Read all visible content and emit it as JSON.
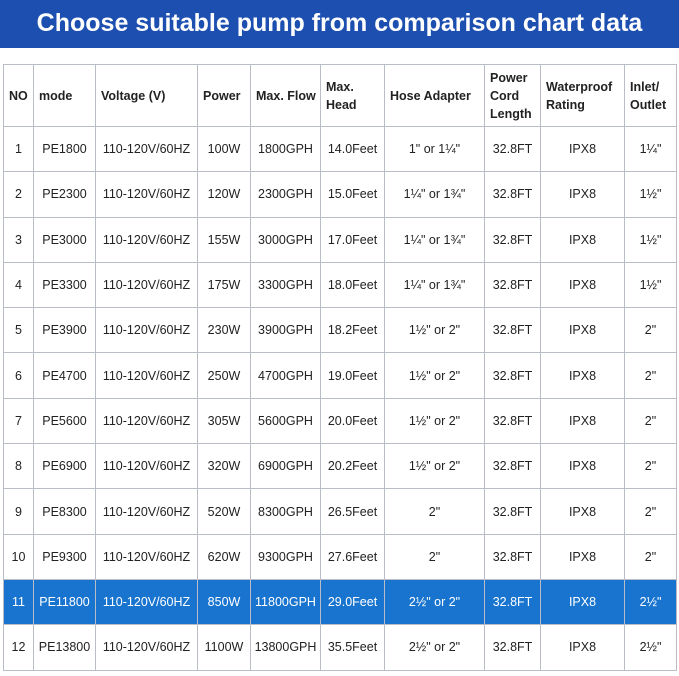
{
  "header": {
    "title": "Choose suitable pump from comparison chart data"
  },
  "table": {
    "columns": [
      "NO",
      "mode",
      "Voltage (V)",
      "Power",
      "Max. Flow",
      "Max. Head",
      "Hose Adapter",
      "Power Cord Length",
      "Waterproof Rating",
      "Inlet/ Outlet"
    ],
    "rows": [
      [
        "1",
        "PE1800",
        "110-120V/60HZ",
        "100W",
        "1800GPH",
        "14.0Feet",
        "1\" or 1¼\"",
        "32.8FT",
        "IPX8",
        "1¼\""
      ],
      [
        "2",
        "PE2300",
        "110-120V/60HZ",
        "120W",
        "2300GPH",
        "15.0Feet",
        "1¼\" or 1¾\"",
        "32.8FT",
        "IPX8",
        "1½\""
      ],
      [
        "3",
        "PE3000",
        "110-120V/60HZ",
        "155W",
        "3000GPH",
        "17.0Feet",
        "1¼\" or 1¾\"",
        "32.8FT",
        "IPX8",
        "1½\""
      ],
      [
        "4",
        "PE3300",
        "110-120V/60HZ",
        "175W",
        "3300GPH",
        "18.0Feet",
        "1¼\" or 1¾\"",
        "32.8FT",
        "IPX8",
        "1½\""
      ],
      [
        "5",
        "PE3900",
        "110-120V/60HZ",
        "230W",
        "3900GPH",
        "18.2Feet",
        "1½\" or 2\"",
        "32.8FT",
        "IPX8",
        "2\""
      ],
      [
        "6",
        "PE4700",
        "110-120V/60HZ",
        "250W",
        "4700GPH",
        "19.0Feet",
        "1½\" or 2\"",
        "32.8FT",
        "IPX8",
        "2\""
      ],
      [
        "7",
        "PE5600",
        "110-120V/60HZ",
        "305W",
        "5600GPH",
        "20.0Feet",
        "1½\" or 2\"",
        "32.8FT",
        "IPX8",
        "2\""
      ],
      [
        "8",
        "PE6900",
        "110-120V/60HZ",
        "320W",
        "6900GPH",
        "20.2Feet",
        "1½\" or 2\"",
        "32.8FT",
        "IPX8",
        "2\""
      ],
      [
        "9",
        "PE8300",
        "110-120V/60HZ",
        "520W",
        "8300GPH",
        "26.5Feet",
        "2\"",
        "32.8FT",
        "IPX8",
        "2\""
      ],
      [
        "10",
        "PE9300",
        "110-120V/60HZ",
        "620W",
        "9300GPH",
        "27.6Feet",
        "2\"",
        "32.8FT",
        "IPX8",
        "2\""
      ],
      [
        "11",
        "PE11800",
        "110-120V/60HZ",
        "850W",
        "11800GPH",
        "29.0Feet",
        "2½\" or 2\"",
        "32.8FT",
        "IPX8",
        "2½\""
      ],
      [
        "12",
        "PE13800",
        "110-120V/60HZ",
        "1100W",
        "13800GPH",
        "35.5Feet",
        "2½\" or 2\"",
        "32.8FT",
        "IPX8",
        "2½\""
      ]
    ]
  }
}
